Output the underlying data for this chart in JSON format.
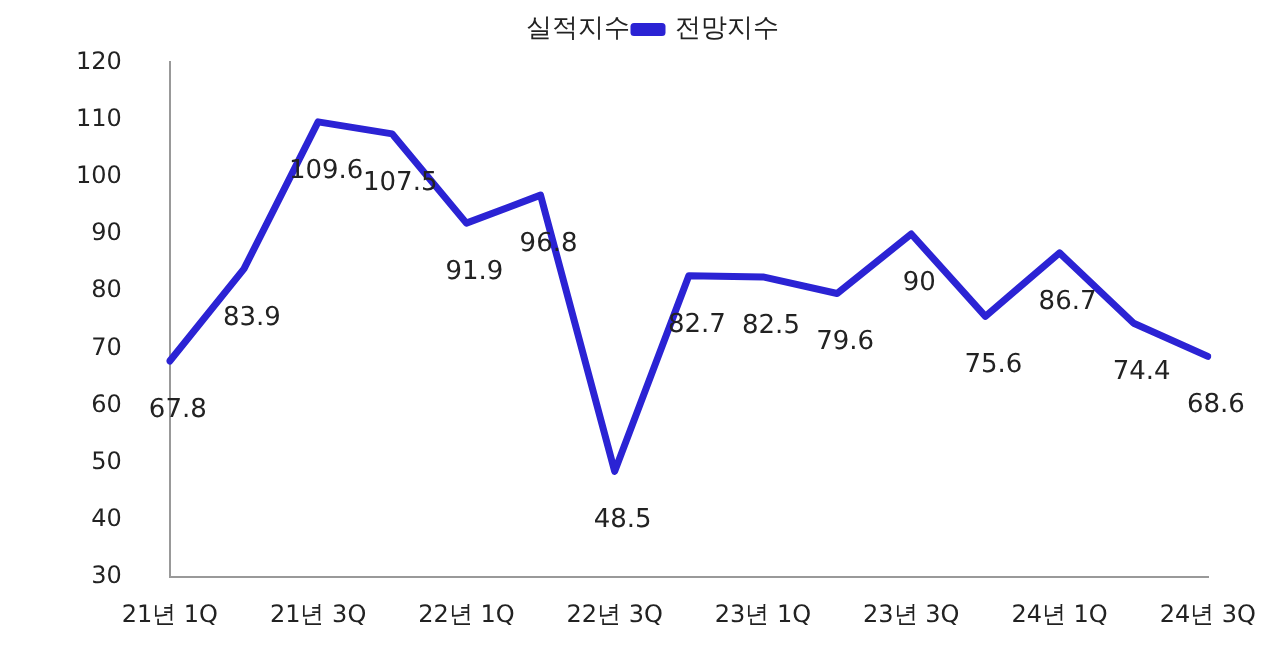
{
  "chart_data": {
    "type": "line",
    "categories": [
      "21년 1Q",
      null,
      "21년 3Q",
      null,
      "22년 1Q",
      null,
      "22년 3Q",
      null,
      "23년 1Q",
      null,
      "23년 3Q",
      null,
      "24년 1Q",
      null,
      "24년 3Q"
    ],
    "series": [
      {
        "name": "실적지수",
        "values": [
          null,
          null,
          null,
          null,
          null,
          null,
          null,
          null,
          null,
          null,
          null,
          null,
          null,
          null,
          null
        ]
      },
      {
        "name": "전망지수",
        "color": "#2b23d4",
        "values": [
          67.8,
          83.9,
          109.6,
          107.5,
          91.9,
          96.8,
          48.5,
          82.7,
          82.5,
          79.6,
          90,
          75.6,
          86.7,
          74.4,
          68.6
        ]
      }
    ],
    "ylim": [
      30,
      120
    ],
    "yticks": [
      30,
      40,
      50,
      60,
      70,
      80,
      90,
      100,
      110,
      120
    ],
    "grid": false,
    "legend": "top",
    "marker": "none",
    "line_style": "solid",
    "data_labels": true
  }
}
